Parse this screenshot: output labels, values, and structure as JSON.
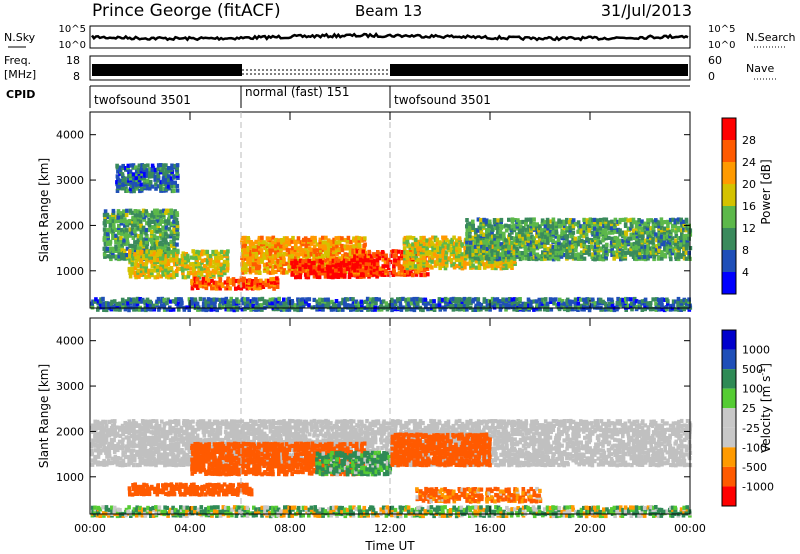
{
  "header": {
    "station": "Prince George (fitACF)",
    "beam": "Beam 13",
    "date": "31/Jul/2013"
  },
  "top_panels": {
    "nsky_label": "N.Sky",
    "nsearch_label": "N.Search",
    "noise_ticks": [
      "10^5",
      "10^0"
    ],
    "freq_label": "Freq.",
    "freq_unit": "[MHz]",
    "freq_ticks": [
      "18",
      "8"
    ],
    "nave_label": "Nave",
    "nave_ticks": [
      "60",
      "0"
    ],
    "cpid_label": "CPID",
    "cpid_segments": [
      {
        "label": "twofsound 3501",
        "start_h": 0,
        "end_h": 6
      },
      {
        "label": "normal (fast) 151",
        "start_h": 6,
        "end_h": 12
      },
      {
        "label": "twofsound 3501",
        "start_h": 12,
        "end_h": 24
      }
    ]
  },
  "colors": {
    "power": [
      "#0000ff",
      "#1f4fb8",
      "#3a8a5c",
      "#5cb84a",
      "#d4c200",
      "#ff9a00",
      "#ff5a00",
      "#ff0000"
    ],
    "velocity": [
      "#ff0000",
      "#ff5a00",
      "#ff9a00",
      "#c8c8c8",
      "#c8c8c8",
      "#55cc33",
      "#2e8a55",
      "#1f4fb8",
      "#0000cc"
    ],
    "ground_scatter": "#c0c0c0"
  },
  "chart_data": [
    {
      "type": "heatmap",
      "name": "power",
      "ylabel": "Slant Range [km]",
      "x_range_hours": [
        0,
        24
      ],
      "ylim": [
        180,
        4500
      ],
      "yticks": [
        1000,
        2000,
        3000,
        4000
      ],
      "colorbar_label": "Power [dB]",
      "colorbar_range": [
        0,
        32
      ],
      "colorbar_ticks": [
        4,
        8,
        12,
        16,
        20,
        24,
        28
      ],
      "mode_changes_h": [
        6,
        12
      ],
      "echo_bands": [
        {
          "t": [
            0.5,
            3.5
          ],
          "r": [
            1300,
            2400
          ],
          "level": 12
        },
        {
          "t": [
            1.5,
            5.5
          ],
          "r": [
            900,
            1500
          ],
          "level": 18
        },
        {
          "t": [
            4.0,
            7.5
          ],
          "r": [
            650,
            900
          ],
          "level": 26
        },
        {
          "t": [
            6.0,
            11.0
          ],
          "r": [
            1000,
            1800
          ],
          "level": 22
        },
        {
          "t": [
            8.0,
            11.5
          ],
          "r": [
            900,
            1300
          ],
          "level": 30
        },
        {
          "t": [
            10.5,
            13.5
          ],
          "r": [
            950,
            1500
          ],
          "level": 28
        },
        {
          "t": [
            12.5,
            17.0
          ],
          "r": [
            1100,
            1800
          ],
          "level": 18
        },
        {
          "t": [
            15.0,
            24.0
          ],
          "r": [
            1300,
            2200
          ],
          "level": 12
        },
        {
          "t": [
            1.0,
            3.5
          ],
          "r": [
            2800,
            3400
          ],
          "level": 8
        },
        {
          "t": [
            0,
            24
          ],
          "r": [
            180,
            450
          ],
          "level": 8
        }
      ]
    },
    {
      "type": "heatmap",
      "name": "velocity",
      "ylabel": "Slant Range [km]",
      "xlabel": "Time UT",
      "x_range_hours": [
        0,
        24
      ],
      "xticks": [
        "00:00",
        "04:00",
        "08:00",
        "12:00",
        "16:00",
        "20:00",
        "00:00"
      ],
      "ylim": [
        180,
        4500
      ],
      "yticks": [
        1000,
        2000,
        3000,
        4000
      ],
      "colorbar_label": "Velocity [m s",
      "colorbar_label_exp": "-1",
      "colorbar_label_close": "]",
      "colorbar_ticks": [
        "1000",
        "500",
        "100",
        "25",
        "-25",
        "-100",
        "-500",
        "-1000"
      ],
      "mode_changes_h": [
        6,
        12
      ],
      "echo_bands": [
        {
          "t": [
            0,
            24
          ],
          "r": [
            1300,
            2300
          ],
          "v": 0
        },
        {
          "t": [
            4.0,
            11.0
          ],
          "r": [
            1100,
            1800
          ],
          "v": -300
        },
        {
          "t": [
            9.0,
            12.0
          ],
          "r": [
            1100,
            1600
          ],
          "v": 150
        },
        {
          "t": [
            12.0,
            16.0
          ],
          "r": [
            1300,
            2000
          ],
          "v": -300
        },
        {
          "t": [
            1.5,
            6.5
          ],
          "r": [
            650,
            900
          ],
          "v": -250
        },
        {
          "t": [
            13.0,
            18.0
          ],
          "r": [
            500,
            800
          ],
          "v": -150
        },
        {
          "t": [
            0,
            24
          ],
          "r": [
            180,
            400
          ],
          "v": 60
        }
      ]
    }
  ]
}
